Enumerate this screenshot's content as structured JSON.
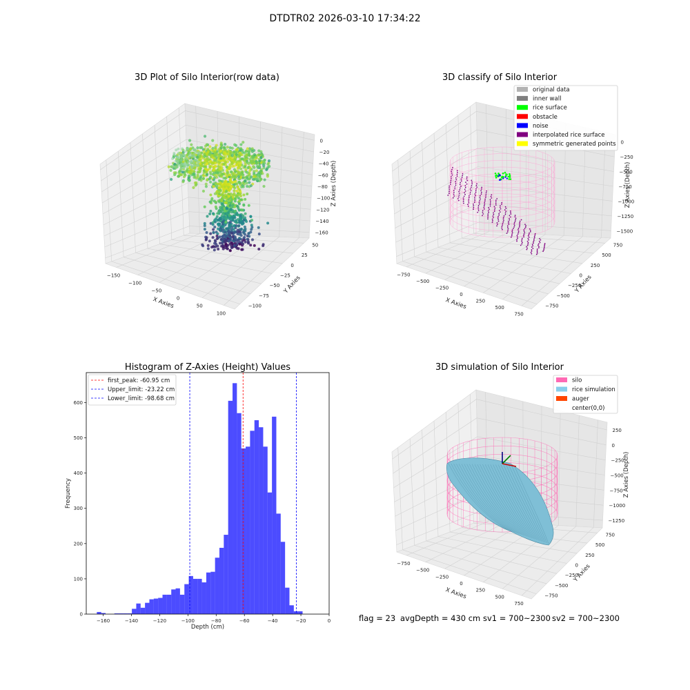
{
  "suptitle": "DTDTR02 2026-03-10 17:34:22",
  "panels": {
    "raw": {
      "title": "3D Plot of Silo Interior(row data)",
      "xlabel": "X Axies",
      "ylabel": "Y Axies",
      "zlabel": "Z Axies (Depth)",
      "xticks": [
        "−150",
        "−100",
        "−50",
        "0",
        "50",
        "100"
      ],
      "yticks": [
        "−100",
        "−75",
        "−50",
        "−25",
        "0",
        "25",
        "50"
      ],
      "zticks": [
        "0",
        "−20",
        "−40",
        "−60",
        "−80",
        "−100",
        "−120",
        "−140",
        "−160"
      ]
    },
    "classify": {
      "title": "3D classify of Silo Interior",
      "xlabel": "X Axies",
      "ylabel": "Y Axies",
      "zlabel": "Z Axies (Depth)",
      "xticks": [
        "−750",
        "−500",
        "−250",
        "0",
        "250",
        "500",
        "750"
      ],
      "yticks": [
        "−750",
        "−500",
        "−250",
        "0",
        "250",
        "500",
        "750"
      ],
      "zticks": [
        "0",
        "−250",
        "−500",
        "−750",
        "−1000",
        "−1250",
        "−1500"
      ],
      "legend": [
        {
          "label": "original data",
          "color": "#b3b3b3"
        },
        {
          "label": "inner wall",
          "color": "#808080"
        },
        {
          "label": "rice surface",
          "color": "#00ff00"
        },
        {
          "label": "obstacle",
          "color": "#ff0000"
        },
        {
          "label": "noise",
          "color": "#0000ff"
        },
        {
          "label": "interpolated rice surface",
          "color": "#800080"
        },
        {
          "label": "symmetric generated points",
          "color": "#ffff00"
        }
      ]
    },
    "simulation": {
      "title": "3D simulation of Silo Interior",
      "xlabel": "X Axies",
      "ylabel": "Y Axies",
      "zlabel": "Z Axies (Depth)",
      "xticks": [
        "−750",
        "−500",
        "−250",
        "0",
        "250",
        "500",
        "750"
      ],
      "yticks": [
        "−750",
        "−500",
        "−250",
        "0",
        "250",
        "500",
        "750"
      ],
      "zticks": [
        "250",
        "0",
        "−250",
        "−500",
        "−750",
        "−1000",
        "−1250"
      ],
      "legend": [
        {
          "label": "silo",
          "color": "#ff69b4"
        },
        {
          "label": "rice simulation",
          "color": "#87ceeb"
        },
        {
          "label": "auger",
          "color": "#ff4500"
        },
        {
          "label": "center(0,0)",
          "color": ""
        }
      ]
    }
  },
  "chart_data": [
    {
      "type": "scatter",
      "projection": "3d",
      "title": "3D Plot of Silo Interior(row data)",
      "xlabel": "X Axies",
      "ylabel": "Y Axies",
      "zlabel": "Z Axies (Depth)",
      "xlim": [
        -150,
        100
      ],
      "ylim": [
        -100,
        50
      ],
      "zlim": [
        -170,
        0
      ],
      "colormap": "viridis",
      "grid": true
    },
    {
      "type": "scatter",
      "projection": "3d",
      "title": "3D classify of Silo Interior",
      "xlabel": "X Axies",
      "ylabel": "Y Axies",
      "zlabel": "Z Axies (Depth)",
      "xlim": [
        -800,
        800
      ],
      "ylim": [
        -800,
        800
      ],
      "zlim": [
        -1500,
        0
      ],
      "legend_position": "upper-right",
      "grid": true
    },
    {
      "type": "bar",
      "subtype": "histogram",
      "title": "Histogram of Z-Axies (Height) Values",
      "xlabel": "Depth (cm)",
      "ylabel": "Frequency",
      "xlim": [
        -172,
        0
      ],
      "ylim": [
        0,
        685
      ],
      "xticks": [
        -160,
        -140,
        -120,
        -100,
        -80,
        -60,
        -40,
        -20,
        0
      ],
      "yticks": [
        0,
        100,
        200,
        300,
        400,
        500,
        600
      ],
      "bin_start": -164.5,
      "bin_width": 3.1,
      "values": [
        6,
        3,
        0,
        0,
        2,
        2,
        2,
        2,
        15,
        30,
        18,
        32,
        42,
        44,
        46,
        55,
        55,
        70,
        73,
        55,
        85,
        108,
        100,
        100,
        90,
        118,
        120,
        160,
        188,
        225,
        605,
        655,
        570,
        470,
        475,
        520,
        550,
        530,
        475,
        345,
        560,
        285,
        205,
        75,
        25,
        8,
        8
      ],
      "bar_color": "#0000ff",
      "vlines": [
        {
          "label": "first_peak: -60.95 cm",
          "x": -60.95,
          "color": "#ff0000"
        },
        {
          "label": "Upper_limit: -23.22 cm",
          "x": -23.22,
          "color": "#0000ff"
        },
        {
          "label": "Lower_limit: -98.68 cm",
          "x": -98.68,
          "color": "#0000ff"
        }
      ],
      "legend_position": "upper-left",
      "grid": false
    },
    {
      "type": "surface",
      "projection": "3d",
      "title": "3D simulation of Silo Interior",
      "xlabel": "X Axies",
      "ylabel": "Y Axies",
      "zlabel": "Z Axies (Depth)",
      "xlim": [
        -800,
        800
      ],
      "ylim": [
        -800,
        800
      ],
      "zlim": [
        -1400,
        300
      ],
      "legend_position": "upper-right",
      "grid": true
    }
  ],
  "footer": {
    "flag": "flag = 23",
    "avgDepth": "avgDepth = 430 cm",
    "sv1": "sv1 = 700~2300",
    "sv2": "sv2 = 700~2300"
  }
}
